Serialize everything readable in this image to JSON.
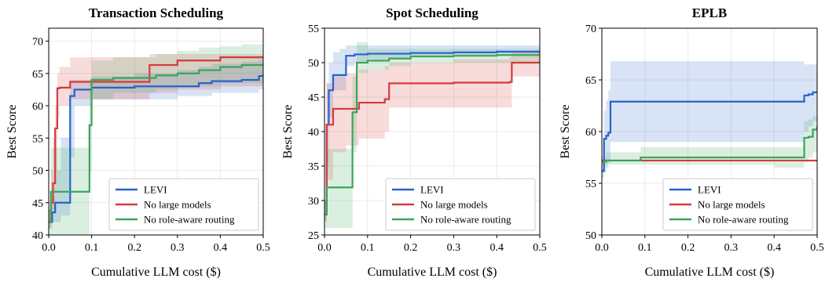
{
  "chart_data": [
    {
      "type": "line",
      "title": "Transaction Scheduling",
      "xlabel": "Cumulative LLM cost ($)",
      "ylabel": "Best Score",
      "xlim": [
        0,
        0.5
      ],
      "ylim": [
        40,
        72
      ],
      "xticks": [
        "0.0",
        "0.1",
        "0.2",
        "0.3",
        "0.4",
        "0.5"
      ],
      "yticks": [
        "40",
        "45",
        "50",
        "55",
        "60",
        "65",
        "70"
      ],
      "grid": true,
      "legend_position": "lower-right",
      "series": [
        {
          "name": "LEVI",
          "color": "#2563c9",
          "x": [
            0,
            0.008,
            0.015,
            0.028,
            0.05,
            0.06,
            0.1,
            0.2,
            0.3,
            0.35,
            0.38,
            0.45,
            0.49,
            0.5
          ],
          "y": [
            42,
            43.5,
            45,
            45,
            61.5,
            62.5,
            62.8,
            63,
            63,
            63.5,
            63.8,
            64,
            64.6,
            64.8
          ],
          "lower": [
            41,
            42,
            42,
            43,
            52,
            60,
            61,
            61,
            61.5,
            61.5,
            62,
            62,
            62.5,
            62.5
          ],
          "upper": [
            44,
            46,
            50,
            55,
            64,
            64,
            64.5,
            65,
            65.5,
            66,
            66.5,
            66.8,
            67,
            67
          ]
        },
        {
          "name": "No large models",
          "color": "#d63a3a",
          "x": [
            0,
            0.005,
            0.01,
            0.015,
            0.02,
            0.025,
            0.05,
            0.1,
            0.23,
            0.235,
            0.3,
            0.4,
            0.5
          ],
          "y": [
            42,
            45,
            48,
            56.5,
            62.7,
            62.8,
            63.7,
            63.7,
            63.7,
            66.3,
            67,
            67.5,
            67.5
          ],
          "lower": [
            41,
            43,
            44,
            50,
            58,
            60,
            61,
            61,
            61,
            62,
            62.5,
            63,
            63
          ],
          "upper": [
            44,
            50,
            55,
            60,
            65,
            66,
            67.5,
            67.5,
            67.5,
            68,
            68,
            68,
            68
          ]
        },
        {
          "name": "No role-aware routing",
          "color": "#3aa55a",
          "x": [
            0,
            0.005,
            0.09,
            0.095,
            0.1,
            0.15,
            0.25,
            0.3,
            0.35,
            0.4,
            0.45,
            0.5
          ],
          "y": [
            42,
            46.7,
            46.7,
            57,
            64,
            64.3,
            64.7,
            65,
            65.5,
            66,
            66.3,
            66.3
          ],
          "lower": [
            40,
            40,
            40,
            50,
            61,
            62,
            62.5,
            63,
            63,
            63.5,
            63.5,
            63.5
          ],
          "upper": [
            44,
            53.5,
            53.5,
            64,
            67,
            67.5,
            68,
            68.5,
            69,
            69.2,
            69.5,
            69.5
          ]
        }
      ]
    },
    {
      "type": "line",
      "title": "Spot Scheduling",
      "xlabel": "Cumulative LLM cost ($)",
      "ylabel": "Best Score",
      "xlim": [
        0,
        0.5
      ],
      "ylim": [
        25,
        55
      ],
      "xticks": [
        "0.0",
        "0.1",
        "0.2",
        "0.3",
        "0.4",
        "0.5"
      ],
      "yticks": [
        "25",
        "30",
        "35",
        "40",
        "45",
        "50",
        "55"
      ],
      "grid": true,
      "legend_position": "lower-right",
      "series": [
        {
          "name": "LEVI",
          "color": "#2563c9",
          "x": [
            0,
            0.005,
            0.01,
            0.02,
            0.035,
            0.05,
            0.07,
            0.1,
            0.2,
            0.3,
            0.4,
            0.5
          ],
          "y": [
            28,
            41,
            46,
            48.2,
            48.2,
            51,
            51.2,
            51.3,
            51.4,
            51.5,
            51.6,
            51.6
          ],
          "lower": [
            27,
            35,
            42,
            46,
            46,
            49.5,
            50,
            50.5,
            50.8,
            51,
            51,
            51
          ],
          "upper": [
            30,
            47,
            50,
            51.5,
            52,
            52.5,
            52.5,
            52.5,
            52.5,
            52.5,
            52.5,
            52.5
          ]
        },
        {
          "name": "No large models",
          "color": "#d63a3a",
          "x": [
            0,
            0.005,
            0.02,
            0.05,
            0.08,
            0.14,
            0.15,
            0.3,
            0.43,
            0.435,
            0.5
          ],
          "y": [
            28,
            41,
            43.3,
            43.3,
            44.2,
            44.7,
            47,
            47.1,
            47.2,
            50,
            50.3
          ],
          "lower": [
            27,
            33,
            37,
            38,
            39,
            40,
            43.5,
            43.5,
            43.5,
            48,
            48.5
          ],
          "upper": [
            30,
            47,
            48,
            48.5,
            49,
            49.5,
            50,
            50.5,
            50.8,
            51.5,
            51.8
          ]
        },
        {
          "name": "No role-aware routing",
          "color": "#3aa55a",
          "x": [
            0,
            0.005,
            0.06,
            0.065,
            0.075,
            0.1,
            0.15,
            0.2,
            0.3,
            0.4,
            0.5
          ],
          "y": [
            28,
            31.9,
            31.9,
            42.8,
            50,
            50.3,
            50.6,
            50.9,
            51,
            51.1,
            51.2
          ],
          "lower": [
            26,
            26,
            26,
            37,
            48.5,
            49,
            49.5,
            50,
            50,
            50,
            50
          ],
          "upper": [
            30,
            37.5,
            37.5,
            48,
            53,
            52,
            52,
            52,
            52,
            52,
            52
          ]
        }
      ]
    },
    {
      "type": "line",
      "title": "EPLB",
      "xlabel": "Cumulative LLM cost ($)",
      "ylabel": "Best Score",
      "xlim": [
        0,
        0.5
      ],
      "ylim": [
        50,
        70
      ],
      "xticks": [
        "0.0",
        "0.1",
        "0.2",
        "0.3",
        "0.4",
        "0.5"
      ],
      "yticks": [
        "50",
        "55",
        "60",
        "65",
        "70"
      ],
      "grid": true,
      "legend_position": "lower-right",
      "series": [
        {
          "name": "LEVI",
          "color": "#2563c9",
          "x": [
            0,
            0.005,
            0.01,
            0.015,
            0.02,
            0.1,
            0.2,
            0.3,
            0.4,
            0.46,
            0.47,
            0.48,
            0.49,
            0.5
          ],
          "y": [
            56.2,
            59.3,
            59.6,
            59.9,
            62.9,
            62.9,
            62.9,
            62.9,
            62.9,
            62.9,
            63.5,
            63.6,
            63.8,
            63.9
          ],
          "lower": [
            55.5,
            56,
            56.5,
            57,
            59,
            59,
            59,
            59,
            59,
            59,
            60,
            60.5,
            61,
            61
          ],
          "upper": [
            57,
            62,
            63,
            64,
            66.8,
            66.8,
            66.8,
            66.8,
            66.8,
            66.8,
            66.5,
            66.5,
            66.5,
            66.5
          ]
        },
        {
          "name": "No large models",
          "color": "#d63a3a",
          "x": [
            0,
            0.1,
            0.2,
            0.3,
            0.4,
            0.5
          ],
          "y": [
            57.2,
            57.2,
            57.2,
            57.2,
            57.2,
            57.2
          ],
          "lower": [
            57.2,
            57.2,
            57.2,
            57.2,
            57.2,
            57.2
          ],
          "upper": [
            57.2,
            57.2,
            57.2,
            57.2,
            57.2,
            57.2
          ]
        },
        {
          "name": "No role-aware routing",
          "color": "#3aa55a",
          "x": [
            0,
            0.01,
            0.09,
            0.2,
            0.3,
            0.4,
            0.47,
            0.48,
            0.49,
            0.5
          ],
          "y": [
            57.1,
            57.2,
            57.5,
            57.5,
            57.5,
            57.5,
            59.4,
            59.5,
            60.2,
            60.5
          ],
          "lower": [
            56.8,
            56.8,
            56.8,
            56.8,
            56.8,
            56.5,
            57,
            57.5,
            58,
            58.2
          ],
          "upper": [
            57.6,
            58,
            58.5,
            58.5,
            58.5,
            58.5,
            61,
            61.2,
            61.5,
            62
          ]
        }
      ]
    }
  ]
}
